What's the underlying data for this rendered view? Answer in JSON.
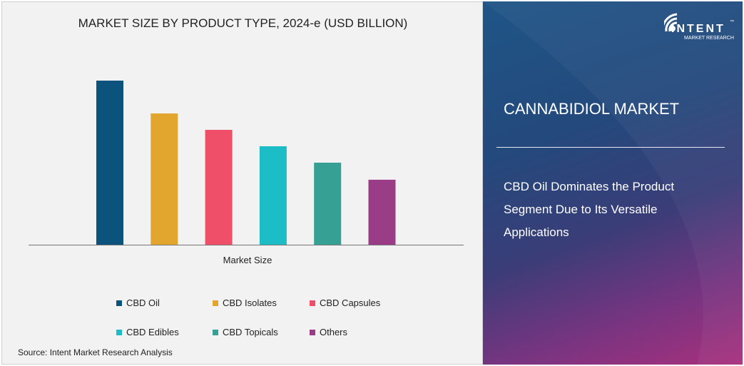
{
  "chart_data": {
    "type": "bar",
    "title": "MARKET SIZE BY PRODUCT TYPE, 2024-e (USD BILLION)",
    "xlabel": "Market Size",
    "ylabel": "",
    "categories": [
      "CBD Oil",
      "CBD Isolates",
      "CBD Capsules",
      "CBD Edibles",
      "CBD Topicals",
      "Others"
    ],
    "values": [
      100,
      80,
      70,
      60,
      50,
      39.6
    ],
    "colors": [
      "#0b527c",
      "#e2a52e",
      "#ef4f68",
      "#1dbdc8",
      "#36a094",
      "#9a3d86"
    ],
    "value_note_scale": "relative",
    "grid": false,
    "legend_position": "bottom"
  },
  "source": "Source:  Intent Market Research Analysis",
  "panel": {
    "logo_text": "INTENT",
    "logo_sub": "MARKET RESEARCH",
    "logo_tm": "™",
    "market_title": "CANNABIDIOL MARKET",
    "subtitle": "CBD Oil Dominates the Product Segment Due to Its Versatile Applications"
  }
}
